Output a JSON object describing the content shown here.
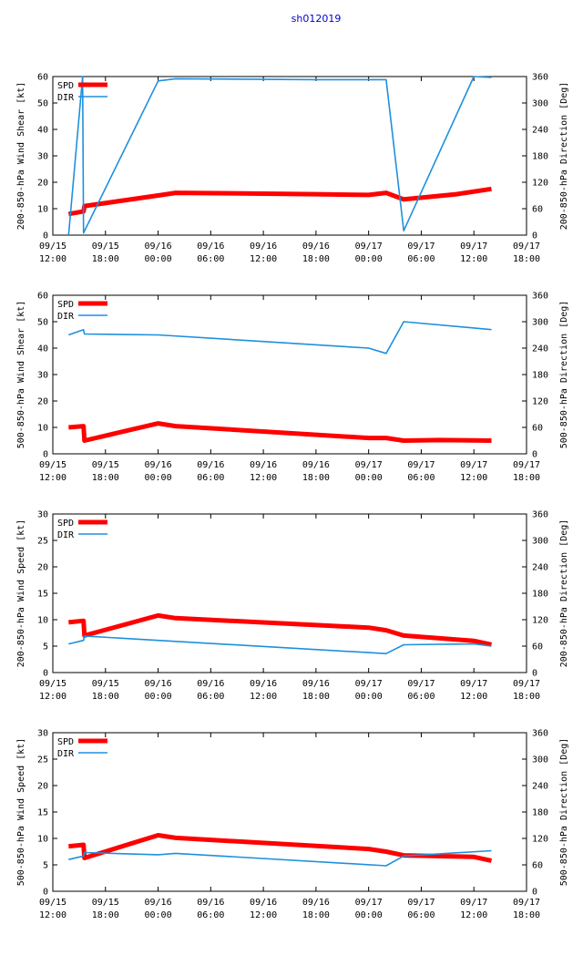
{
  "figure_title": "sh012019",
  "colors": {
    "spd": "#ff0000",
    "dir": "#1e90dd",
    "title": "#0000cc",
    "axes": "#000000"
  },
  "legend": {
    "spd": "SPD",
    "dir": "DIR"
  },
  "x_axis": {
    "range_hours": [
      0,
      54
    ],
    "ticks": [
      {
        "h": 0,
        "date": "09/15",
        "time": "12:00"
      },
      {
        "h": 6,
        "date": "09/15",
        "time": "18:00"
      },
      {
        "h": 12,
        "date": "09/16",
        "time": "00:00"
      },
      {
        "h": 18,
        "date": "09/16",
        "time": "06:00"
      },
      {
        "h": 24,
        "date": "09/16",
        "time": "12:00"
      },
      {
        "h": 30,
        "date": "09/16",
        "time": "18:00"
      },
      {
        "h": 36,
        "date": "09/17",
        "time": "00:00"
      },
      {
        "h": 42,
        "date": "09/17",
        "time": "06:00"
      },
      {
        "h": 48,
        "date": "09/17",
        "time": "12:00"
      },
      {
        "h": 54,
        "date": "09/17",
        "time": "18:00"
      }
    ]
  },
  "chart_data": [
    {
      "type": "line",
      "ylabel_left": "200-850-hPa Wind Shear [kt]",
      "ylabel_right": "200-850-hPa Direction [Deg]",
      "ylim_left": [
        0,
        60
      ],
      "yticks_left": [
        0,
        10,
        20,
        30,
        40,
        50,
        60
      ],
      "ylim_right": [
        0,
        360
      ],
      "yticks_right": [
        0,
        60,
        120,
        180,
        240,
        300,
        360
      ],
      "series": [
        {
          "name": "SPD",
          "axis": "left",
          "x": [
            1.8,
            3.5,
            3.6,
            12,
            14,
            24,
            30,
            36,
            38,
            40,
            46,
            50
          ],
          "values": [
            8,
            9,
            11,
            15,
            16,
            15.7,
            15.5,
            15.2,
            16,
            13.5,
            15.5,
            17.5
          ]
        },
        {
          "name": "DIR",
          "axis": "right",
          "x": [
            1.8,
            3.4,
            3.5,
            12,
            14,
            30,
            38,
            40,
            48,
            50
          ],
          "values": [
            0,
            360,
            5,
            350,
            355,
            353,
            353,
            10,
            360,
            358
          ]
        }
      ]
    },
    {
      "type": "line",
      "ylabel_left": "500-850-hPa Wind Shear [kt]",
      "ylabel_right": "500-850-hPa Direction [Deg]",
      "ylim_left": [
        0,
        60
      ],
      "yticks_left": [
        0,
        10,
        20,
        30,
        40,
        50,
        60
      ],
      "ylim_right": [
        0,
        360
      ],
      "yticks_right": [
        0,
        60,
        120,
        180,
        240,
        300,
        360
      ],
      "series": [
        {
          "name": "SPD",
          "axis": "left",
          "x": [
            1.8,
            3.5,
            3.6,
            12,
            14,
            36,
            38,
            40,
            44,
            50
          ],
          "values": [
            10,
            10.5,
            5,
            11.5,
            10.5,
            6,
            6,
            5,
            5.2,
            5
          ]
        },
        {
          "name": "DIR",
          "axis": "right",
          "x": [
            1.8,
            3.5,
            3.6,
            12,
            36,
            38,
            40,
            50
          ],
          "values": [
            270,
            282,
            272,
            270,
            240,
            228,
            300,
            282
          ]
        }
      ]
    },
    {
      "type": "line",
      "ylabel_left": "200-850-hPa Wind Speed [kt]",
      "ylabel_right": "200-850-hPa Direction [Deg]",
      "ylim_left": [
        0,
        30
      ],
      "yticks_left": [
        0,
        5,
        10,
        15,
        20,
        25,
        30
      ],
      "ylim_right": [
        0,
        360
      ],
      "yticks_right": [
        0,
        60,
        120,
        180,
        240,
        300,
        360
      ],
      "series": [
        {
          "name": "SPD",
          "axis": "left",
          "x": [
            1.8,
            3.5,
            3.6,
            12,
            14,
            36,
            38,
            40,
            48,
            50
          ],
          "values": [
            9.5,
            9.8,
            7,
            10.8,
            10.3,
            8.5,
            8,
            7,
            6,
            5.3
          ]
        },
        {
          "name": "DIR",
          "axis": "right",
          "x": [
            1.8,
            3.5,
            3.6,
            12,
            38,
            40,
            48,
            50
          ],
          "values": [
            65,
            73,
            83,
            73,
            43,
            63,
            65,
            60
          ]
        }
      ]
    },
    {
      "type": "line",
      "ylabel_left": "500-850-hPa Wind Speed [kt]",
      "ylabel_right": "500-850-hPa Direction [Deg]",
      "ylim_left": [
        0,
        30
      ],
      "yticks_left": [
        0,
        5,
        10,
        15,
        20,
        25,
        30
      ],
      "ylim_right": [
        0,
        360
      ],
      "yticks_right": [
        0,
        60,
        120,
        180,
        240,
        300,
        360
      ],
      "series": [
        {
          "name": "SPD",
          "axis": "left",
          "x": [
            1.8,
            3.5,
            3.6,
            12,
            14,
            36,
            38,
            40,
            48,
            50
          ],
          "values": [
            8.5,
            8.8,
            6.3,
            10.6,
            10.1,
            8,
            7.5,
            6.8,
            6.5,
            5.8
          ]
        },
        {
          "name": "DIR",
          "axis": "right",
          "x": [
            1.8,
            3.5,
            3.6,
            12,
            14,
            38,
            40,
            50
          ],
          "values": [
            72,
            80,
            88,
            83,
            86,
            58,
            80,
            92
          ]
        }
      ]
    }
  ]
}
